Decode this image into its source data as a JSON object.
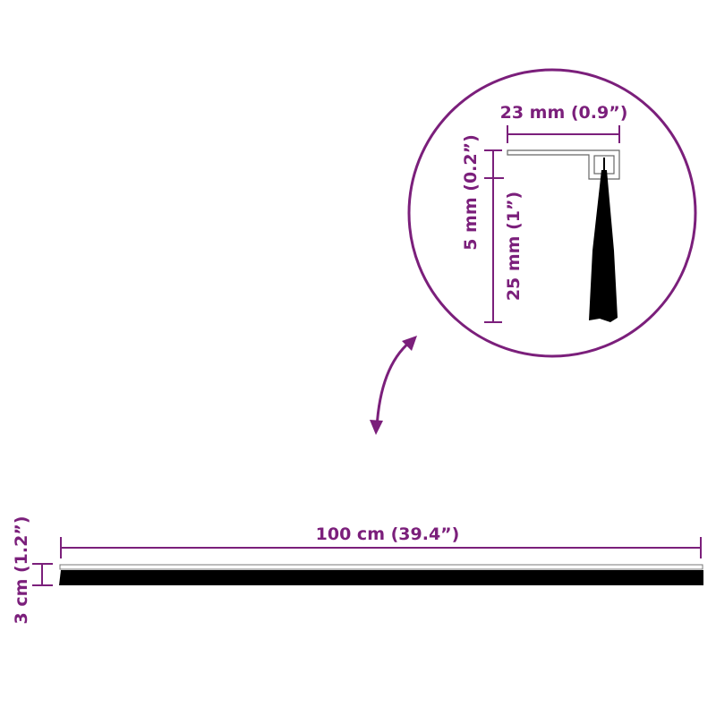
{
  "colors": {
    "accent": "#7b1f7b",
    "brush": "#000000",
    "profile": "#666666"
  },
  "detail": {
    "width_label": "23 mm (0.9”)",
    "profile_height_label": "5 mm (0.2”)",
    "brush_height_label": "25 mm (1”)"
  },
  "overview": {
    "length_label": "100 cm (39.4”)",
    "height_label": "3 cm (1.2”)"
  },
  "icons": {
    "zoom_link": "curved-double-arrow-icon"
  }
}
